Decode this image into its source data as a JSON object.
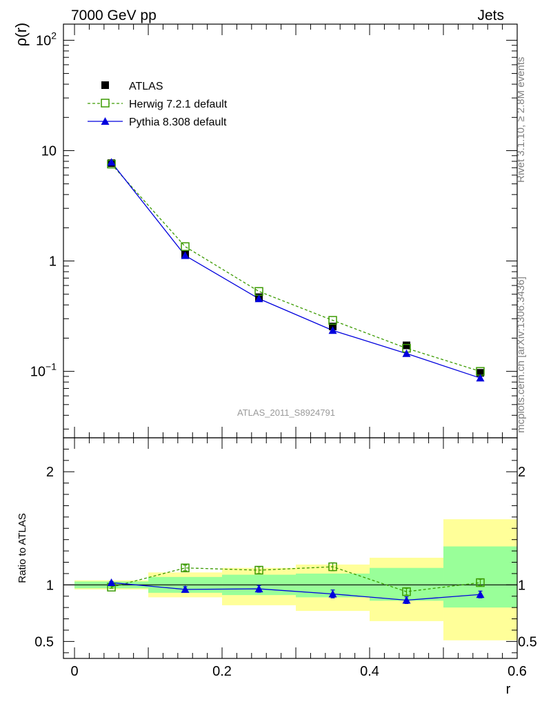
{
  "header": {
    "left": "7000 GeV pp",
    "right": "Jets"
  },
  "side_labels": {
    "rivet": "Rivet 3.1.10, ≥ 2.8M events",
    "source": "mcplots.cern.ch [arXiv:1306.3436]"
  },
  "analysis_id": "ATLAS_2011_S8924791",
  "colors": {
    "atlas": "#000000",
    "herwig": "#3a9a00",
    "pythia": "#0000dd",
    "band_outer": "#ffff99",
    "band_inner": "#99ff99"
  },
  "chart_data": [
    {
      "type": "scatter",
      "panel": "main",
      "ylabel": "ρ(r)",
      "yscale": "log",
      "ylim": [
        0.025,
        140
      ],
      "xlim": [
        -0.015,
        0.6
      ],
      "ytick_labels": [
        "10^2",
        "10",
        "1",
        "10^-1"
      ],
      "legend": {
        "placement": "top-left",
        "entries": [
          "ATLAS",
          "Herwig 7.2.1 default",
          "Pythia 8.308 default"
        ]
      },
      "x": [
        0.05,
        0.15,
        0.25,
        0.35,
        0.45,
        0.55
      ],
      "series": [
        {
          "name": "ATLAS",
          "values": [
            7.7,
            1.15,
            0.47,
            0.255,
            0.172,
            0.097
          ]
        },
        {
          "name": "Herwig 7.2.1 default",
          "values": [
            7.55,
            1.35,
            0.53,
            0.29,
            0.162,
            0.1
          ]
        },
        {
          "name": "Pythia 8.308 default",
          "values": [
            7.85,
            1.12,
            0.455,
            0.235,
            0.145,
            0.087
          ]
        }
      ]
    },
    {
      "type": "line",
      "panel": "ratio",
      "ylabel": "Ratio to ATLAS",
      "xlabel": "r",
      "xlim": [
        -0.015,
        0.6
      ],
      "ylim": [
        0.35,
        2.3
      ],
      "xtick_labels": [
        "0",
        "0.2",
        "0.4",
        "0.6"
      ],
      "ytick_labels": [
        "0.5",
        "1",
        "2"
      ],
      "bins": [
        [
          0.0,
          0.1
        ],
        [
          0.1,
          0.2
        ],
        [
          0.2,
          0.3
        ],
        [
          0.3,
          0.4
        ],
        [
          0.4,
          0.5
        ],
        [
          0.5,
          0.6
        ]
      ],
      "band_outer": [
        [
          0.96,
          1.04
        ],
        [
          0.89,
          1.11
        ],
        [
          0.82,
          1.15
        ],
        [
          0.77,
          1.18
        ],
        [
          0.68,
          1.24
        ],
        [
          0.51,
          1.58
        ]
      ],
      "band_inner": [
        [
          0.97,
          1.03
        ],
        [
          0.93,
          1.07
        ],
        [
          0.91,
          1.09
        ],
        [
          0.89,
          1.1
        ],
        [
          0.86,
          1.15
        ],
        [
          0.8,
          1.34
        ]
      ],
      "x": [
        0.05,
        0.15,
        0.25,
        0.35,
        0.45,
        0.55
      ],
      "series": [
        {
          "name": "Herwig 7.2.1 default",
          "values": [
            0.98,
            1.15,
            1.13,
            1.16,
            0.94,
            1.02
          ],
          "err": [
            0.01,
            0.025,
            0.03,
            0.035,
            0.03,
            0.03
          ]
        },
        {
          "name": "Pythia 8.308 default",
          "values": [
            1.02,
            0.96,
            0.965,
            0.92,
            0.865,
            0.915
          ],
          "err": [
            0.01,
            0.025,
            0.03,
            0.035,
            0.03,
            0.03
          ]
        }
      ]
    }
  ]
}
